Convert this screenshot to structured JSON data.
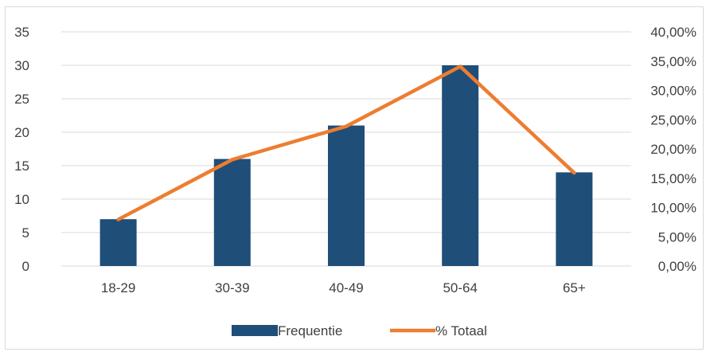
{
  "chart_data": {
    "type": "bar",
    "categories": [
      "18-29",
      "30-39",
      "40-49",
      "50-64",
      "65+"
    ],
    "series": [
      {
        "name": "Frequentie",
        "type": "bar",
        "axis": "left",
        "color": "#1f4e79",
        "values": [
          7,
          16,
          21,
          30,
          14
        ]
      },
      {
        "name": "% Totaal",
        "type": "line",
        "axis": "right",
        "color": "#ed7d31",
        "values": [
          7.95,
          18.18,
          23.86,
          34.09,
          15.91
        ]
      }
    ],
    "y_left": {
      "ylim": [
        0,
        35
      ],
      "ticks": [
        0,
        5,
        10,
        15,
        20,
        25,
        30,
        35
      ],
      "tick_labels": [
        "0",
        "5",
        "10",
        "15",
        "20",
        "25",
        "30",
        "35"
      ]
    },
    "y_right": {
      "ylim": [
        0,
        40
      ],
      "ticks": [
        0,
        5,
        10,
        15,
        20,
        25,
        30,
        35,
        40
      ],
      "tick_labels": [
        "0,00%",
        "5,00%",
        "10,00%",
        "15,00%",
        "20,00%",
        "25,00%",
        "30,00%",
        "35,00%",
        "40,00%"
      ]
    },
    "title": "",
    "xlabel": "",
    "ylabel": "",
    "grid": true,
    "legend": "bottom",
    "gridline_color": "#d9d9d9"
  }
}
